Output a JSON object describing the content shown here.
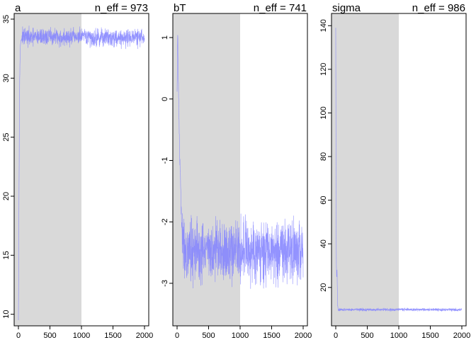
{
  "chart_data": [
    {
      "type": "line",
      "title": "a",
      "annotation": "n_eff = 973",
      "warmup_end": 1000,
      "xlim": [
        0,
        2000
      ],
      "ylim": [
        9.5,
        35
      ],
      "x_ticks": [
        0,
        500,
        1000,
        1500,
        2000
      ],
      "x_tick_labels": [
        "0",
        "500",
        "1000",
        "1500",
        "2000"
      ],
      "y_ticks": [
        10,
        15,
        20,
        25,
        30,
        35
      ],
      "y_tick_labels": [
        "10",
        "15",
        "20",
        "25",
        "30",
        "35"
      ],
      "series": [
        {
          "color": "#8080ff",
          "x": [
            0,
            10,
            20,
            30,
            40,
            60,
            100,
            200,
            300,
            500,
            700,
            900,
            1000,
            1200,
            1400,
            1600,
            1800,
            2000
          ],
          "values": [
            9.5,
            21,
            30,
            32.6,
            33.2,
            33.4,
            33.5,
            33.4,
            33.5,
            33.5,
            33.4,
            33.5,
            33.5,
            33.4,
            33.5,
            33.4,
            33.5,
            33.4
          ],
          "noise": 0.45
        }
      ]
    },
    {
      "type": "line",
      "title": "bT",
      "annotation": "n_eff = 741",
      "warmup_end": 1000,
      "xlim": [
        0,
        2000
      ],
      "ylim": [
        -3.6,
        1.3
      ],
      "x_ticks": [
        0,
        500,
        1000,
        1500,
        2000
      ],
      "x_tick_labels": [
        "0",
        "500",
        "1000",
        "1500",
        "2000"
      ],
      "y_ticks": [
        -3,
        -2,
        -1,
        0,
        1
      ],
      "y_tick_labels": [
        "-3",
        "-2",
        "-1",
        "0",
        "1"
      ],
      "series": [
        {
          "color": "#8080ff",
          "x": [
            0,
            10,
            20,
            40,
            60,
            80,
            100,
            150,
            200,
            400,
            600,
            800,
            1000,
            1200,
            1400,
            1600,
            1800,
            2000
          ],
          "values": [
            0.1,
            1.15,
            0.2,
            -0.8,
            -1.6,
            -2.2,
            -2.4,
            -2.5,
            -2.45,
            -2.5,
            -2.45,
            -2.5,
            -2.45,
            -2.5,
            -2.45,
            -2.5,
            -2.45,
            -2.45
          ],
          "noise": 0.3
        }
      ]
    },
    {
      "type": "line",
      "title": "sigma",
      "annotation": "n_eff = 986",
      "warmup_end": 1000,
      "xlim": [
        0,
        2000
      ],
      "ylim": [
        5,
        143
      ],
      "x_ticks": [
        0,
        500,
        1000,
        1500,
        2000
      ],
      "x_tick_labels": [
        "0",
        "500",
        "1000",
        "1500",
        "2000"
      ],
      "y_ticks": [
        20,
        40,
        60,
        80,
        100,
        120,
        140
      ],
      "y_tick_labels": [
        "20",
        "40",
        "60",
        "80",
        "100",
        "120",
        "140"
      ],
      "series": [
        {
          "color": "#8080ff",
          "x": [
            0,
            5,
            10,
            15,
            20,
            25,
            30,
            35,
            40,
            60,
            100,
            200,
            500,
            1000,
            1500,
            2000
          ],
          "values": [
            139,
            60,
            30,
            24,
            28,
            20,
            12,
            10,
            9.8,
            9.9,
            9.8,
            9.9,
            9.8,
            9.9,
            9.8,
            9.8
          ],
          "noise": 0.4
        }
      ]
    }
  ]
}
